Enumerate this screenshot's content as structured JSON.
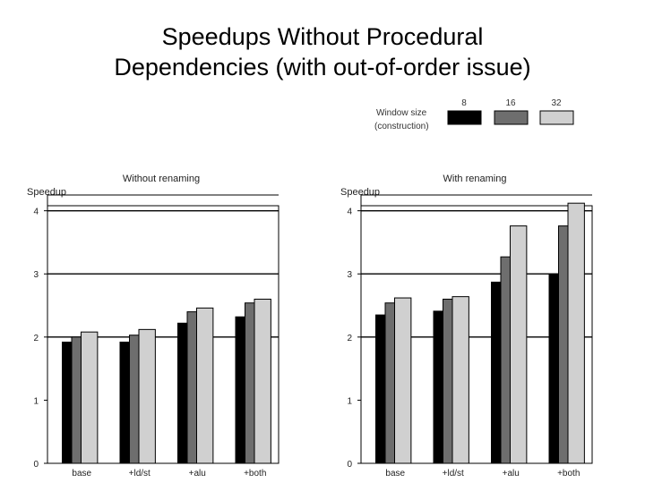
{
  "slide": {
    "title_line1": "Speedups  Without Procedural",
    "title_line2": "Dependencies (with out-of-order issue)"
  },
  "legend": {
    "label_line1": "Window size",
    "label_line2": "(construction)",
    "entries": [
      {
        "name": "8",
        "color": "#000000"
      },
      {
        "name": "16",
        "color": "#6e6e6e"
      },
      {
        "name": "32",
        "color": "#d0d0d0"
      }
    ]
  },
  "chart_data": [
    {
      "type": "bar",
      "title": "Without renaming",
      "ylabel": "Speedup",
      "categories": [
        "base",
        "+ld/st",
        "+alu",
        "+both"
      ],
      "ylim": [
        0,
        4.25
      ],
      "yticks": [
        "0",
        "1",
        "2",
        "3",
        "4"
      ],
      "grid": "horizontal at 2, 3, 4",
      "series": [
        {
          "name": "8",
          "values": [
            1.92,
            1.92,
            2.22,
            2.32
          ]
        },
        {
          "name": "16",
          "values": [
            2.0,
            2.03,
            2.4,
            2.54
          ]
        },
        {
          "name": "32",
          "values": [
            2.08,
            2.12,
            2.46,
            2.6
          ]
        }
      ]
    },
    {
      "type": "bar",
      "title": "With renaming",
      "ylabel": "Speedup",
      "categories": [
        "base",
        "+ld/st",
        "+alu",
        "+both"
      ],
      "ylim": [
        0,
        4.25
      ],
      "yticks": [
        "0",
        "1",
        "2",
        "3",
        "4"
      ],
      "grid": "horizontal at 2, 3, 4",
      "series": [
        {
          "name": "8",
          "values": [
            2.35,
            2.41,
            2.87,
            3.0
          ]
        },
        {
          "name": "16",
          "values": [
            2.54,
            2.6,
            3.27,
            3.76
          ]
        },
        {
          "name": "32",
          "values": [
            2.62,
            2.64,
            3.76,
            4.12
          ]
        }
      ]
    }
  ]
}
